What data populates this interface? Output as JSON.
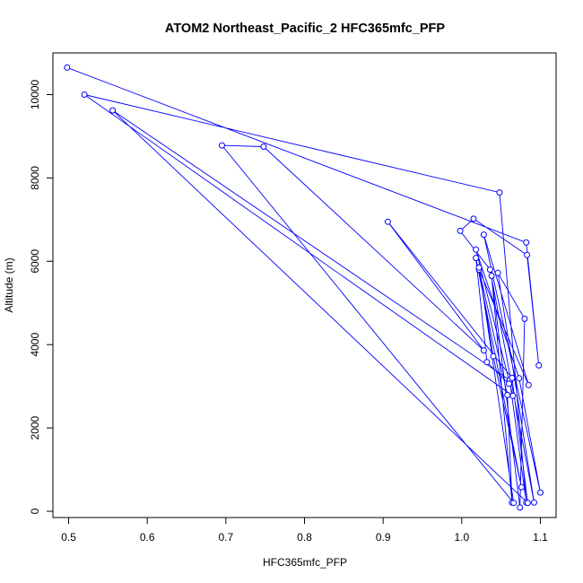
{
  "chart_data": {
    "type": "line",
    "title": "ATOM2 Northeast_Pacific_2 HFC365mfc_PFP",
    "xlabel": "HFC365mfc_PFP",
    "ylabel": "Altitude (m)",
    "xlim": [
      0.48,
      1.12
    ],
    "ylim": [
      -150,
      11000
    ],
    "x_ticks": [
      0.5,
      0.6,
      0.7,
      0.8,
      0.9,
      1.0,
      1.1
    ],
    "x_tick_labels": [
      "0.5",
      "0.6",
      "0.7",
      "0.8",
      "0.9",
      "1.0",
      "1.1"
    ],
    "y_ticks": [
      0,
      2000,
      4000,
      6000,
      8000,
      10000
    ],
    "y_tick_labels": [
      "0",
      "2000",
      "4000",
      "6000",
      "8000",
      "10000"
    ],
    "grid": false,
    "marker": "open-circle",
    "series": [
      {
        "color": "#0000ff",
        "points": [
          [
            0.498,
            10650
          ],
          [
            1.082,
            6450
          ],
          [
            1.098,
            3500
          ],
          [
            1.083,
            6150
          ],
          [
            1.015,
            7020
          ],
          [
            0.998,
            6730
          ],
          [
            1.036,
            5800
          ],
          [
            1.092,
            210
          ],
          [
            1.046,
            5720
          ],
          [
            1.08,
            4620
          ],
          [
            1.074,
            90
          ],
          [
            1.038,
            5650
          ],
          [
            1.064,
            210
          ],
          [
            1.058,
            2790
          ],
          [
            1.022,
            5800
          ],
          [
            1.085,
            3030
          ],
          [
            1.028,
            6640
          ],
          [
            1.1,
            450
          ],
          [
            1.073,
            3190
          ],
          [
            1.018,
            6280
          ],
          [
            1.065,
            2770
          ],
          [
            0.52,
            10000
          ],
          [
            1.048,
            7650
          ],
          [
            1.082,
            210
          ],
          [
            1.061,
            3150
          ],
          [
            0.556,
            9620
          ],
          [
            1.084,
            200
          ],
          [
            1.064,
            3200
          ],
          [
            0.906,
            6950
          ],
          [
            1.028,
            3860
          ],
          [
            0.748,
            8750
          ],
          [
            0.695,
            8780
          ],
          [
            1.066,
            200
          ],
          [
            1.022,
            5850
          ],
          [
            1.04,
            3720
          ],
          [
            1.076,
            580
          ],
          [
            1.018,
            6080
          ],
          [
            1.032,
            3580
          ],
          [
            1.06,
            3060
          ]
        ]
      }
    ]
  }
}
